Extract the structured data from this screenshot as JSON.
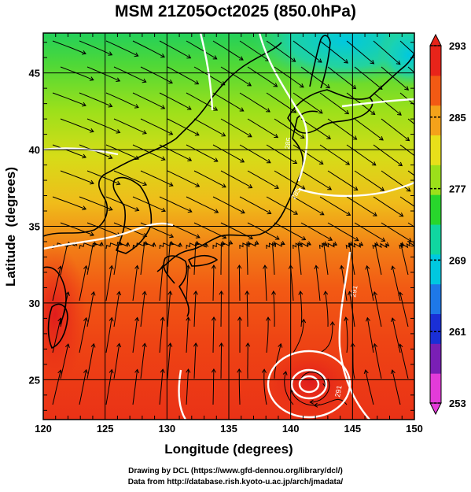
{
  "title": "MSM 21Z05Oct2025 (850.0hPa)",
  "x_axis": {
    "label": "Longitude (degrees)",
    "ticks": [
      "120",
      "125",
      "130",
      "135",
      "140",
      "145",
      "150"
    ],
    "range": [
      120,
      150
    ]
  },
  "y_axis": {
    "label": "Latitude  (degrees)",
    "ticks": [
      "25",
      "30",
      "35",
      "40",
      "45"
    ],
    "range": [
      22.4,
      47.6
    ]
  },
  "colorbar": {
    "range": [
      253,
      293
    ],
    "ticks": [
      "253",
      "261",
      "269",
      "277",
      "285",
      "293"
    ],
    "colors": [
      "#e33bd9",
      "#7a1fb5",
      "#1a2fd6",
      "#1e78e8",
      "#00c8e0",
      "#10d6a0",
      "#28d62c",
      "#9ce01a",
      "#e8e01a",
      "#f4a21a",
      "#f25a14",
      "#e8241a"
    ]
  },
  "credit": {
    "line1": "Drawing by DCL (https://www.gfd-dennou.org/library/dcl/)",
    "line2": "Data from http://database.rish.kyoto-u.ac.jp/arch/jmadata/"
  },
  "map_data": {
    "field": "temperature (K) with wind streamlines at 850.0hPa",
    "contour_labels": [
      "285",
      "291",
      "291",
      "285"
    ],
    "contour_level_step": 3,
    "high_temperature_core": {
      "lon": 141.2,
      "lat": 25.1
    }
  }
}
